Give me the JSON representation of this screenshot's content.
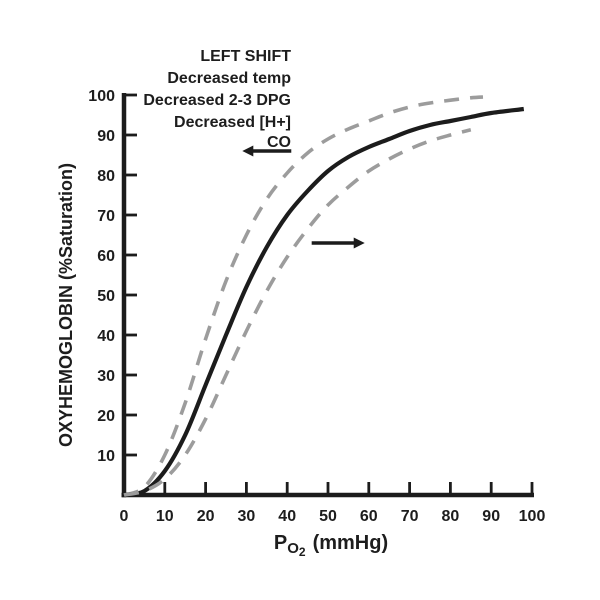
{
  "figure": {
    "background": "#ffffff"
  },
  "colors": {
    "curve_solid": "#1c1c1c",
    "curve_dashed": "#9c9c9c",
    "axis": "#1c1c1c",
    "text": "#1d1d1d"
  },
  "annotations": {
    "title": "LEFT SHIFT",
    "lines": [
      "Decreased temp",
      "Decreased 2-3 DPG",
      "Decreased [H+]",
      "CO"
    ]
  },
  "chart_data": {
    "type": "line",
    "title": "",
    "ylabel": "OXYHEMOGLOBIN (%Saturation)",
    "xlabel": {
      "symbol": "P",
      "sub": "O",
      "sub2": "2",
      "unit": "(mmHg)"
    },
    "xlim": [
      0,
      100
    ],
    "ylim": [
      0,
      100
    ],
    "x_ticks": [
      0,
      10,
      20,
      30,
      40,
      50,
      60,
      70,
      80,
      90,
      100
    ],
    "y_ticks": [
      10,
      20,
      30,
      40,
      50,
      60,
      70,
      80,
      90,
      100
    ],
    "grid": false,
    "legend": false,
    "series": [
      {
        "name": "left_shifted_curve",
        "style": "dashed",
        "color": "#9c9c9c",
        "points": [
          [
            0,
            0
          ],
          [
            5,
            2
          ],
          [
            10,
            10
          ],
          [
            15,
            23
          ],
          [
            20,
            39
          ],
          [
            25,
            53.5
          ],
          [
            30,
            65
          ],
          [
            35,
            74
          ],
          [
            40,
            80.5
          ],
          [
            45,
            85.5
          ],
          [
            50,
            89
          ],
          [
            55,
            91.5
          ],
          [
            60,
            93.5
          ],
          [
            65,
            95.5
          ],
          [
            70,
            97
          ],
          [
            75,
            98
          ],
          [
            80,
            98.7
          ],
          [
            85,
            99.3
          ],
          [
            88,
            99.5
          ]
        ]
      },
      {
        "name": "normal_curve",
        "style": "solid",
        "color": "#1c1c1c",
        "points": [
          [
            0,
            0
          ],
          [
            5,
            1
          ],
          [
            10,
            6
          ],
          [
            15,
            15
          ],
          [
            20,
            27.5
          ],
          [
            25,
            40
          ],
          [
            30,
            52
          ],
          [
            35,
            62
          ],
          [
            40,
            70
          ],
          [
            45,
            76
          ],
          [
            50,
            81
          ],
          [
            55,
            84.5
          ],
          [
            60,
            87
          ],
          [
            65,
            89
          ],
          [
            70,
            91
          ],
          [
            75,
            92.5
          ],
          [
            80,
            93.5
          ],
          [
            85,
            94.5
          ],
          [
            90,
            95.5
          ],
          [
            98,
            96.5
          ]
        ]
      },
      {
        "name": "right_shifted_curve",
        "style": "dashed",
        "color": "#9c9c9c",
        "points": [
          [
            0,
            0
          ],
          [
            5,
            1
          ],
          [
            10,
            4
          ],
          [
            15,
            10
          ],
          [
            20,
            19
          ],
          [
            25,
            30
          ],
          [
            30,
            41
          ],
          [
            35,
            51
          ],
          [
            40,
            59.5
          ],
          [
            45,
            66.5
          ],
          [
            50,
            72.5
          ],
          [
            55,
            77
          ],
          [
            60,
            81
          ],
          [
            65,
            84
          ],
          [
            70,
            86.5
          ],
          [
            75,
            88.5
          ],
          [
            80,
            90
          ],
          [
            85,
            91.3
          ]
        ]
      }
    ],
    "arrows": [
      {
        "name": "left-shift-arrow",
        "direction": "left",
        "tail_x": 41,
        "head_x": 29,
        "y": 86
      },
      {
        "name": "right-shift-arrow",
        "direction": "right",
        "tail_x": 46,
        "head_x": 59,
        "y": 63
      }
    ]
  }
}
